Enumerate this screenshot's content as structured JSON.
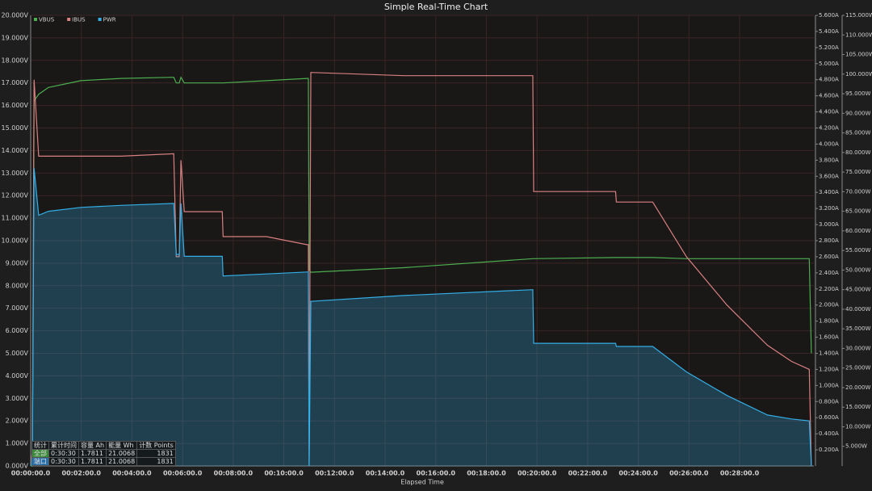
{
  "chart_data": {
    "type": "line",
    "title": "Simple Real-Time Chart",
    "xlabel": "Elapsed Time",
    "grid": true,
    "legend": "top-left",
    "x": [
      0,
      4,
      8,
      19,
      42,
      119,
      214,
      339,
      345,
      352,
      356,
      364,
      454,
      456,
      559,
      655,
      658,
      660,
      664,
      884,
      1190,
      1192,
      1386,
      1388,
      1474,
      1554,
      1650,
      1746,
      1803,
      1845,
      1850
    ],
    "xlim": [
      0,
      1856
    ],
    "xticks": [
      {
        "value": 0,
        "label": "00:00:00.0"
      },
      {
        "value": 120,
        "label": "00:02:00.0"
      },
      {
        "value": 240,
        "label": "00:04:00.0"
      },
      {
        "value": 360,
        "label": "00:06:00.0"
      },
      {
        "value": 480,
        "label": "00:08:00.0"
      },
      {
        "value": 600,
        "label": "00:10:00.0"
      },
      {
        "value": 720,
        "label": "00:12:00.0"
      },
      {
        "value": 840,
        "label": "00:14:00.0"
      },
      {
        "value": 960,
        "label": "00:16:00.0"
      },
      {
        "value": 1080,
        "label": "00:18:00.0"
      },
      {
        "value": 1200,
        "label": "00:20:00.0"
      },
      {
        "value": 1320,
        "label": "00:22:00.0"
      },
      {
        "value": 1440,
        "label": "00:24:00.0"
      },
      {
        "value": 1560,
        "label": "00:26:00.0"
      },
      {
        "value": 1680,
        "label": "00:28:00.0"
      }
    ],
    "ylim": [
      0,
      20
    ],
    "yticks": [
      {
        "value": 0,
        "label": "0.000V"
      },
      {
        "value": 1,
        "label": "1.000V"
      },
      {
        "value": 2,
        "label": "2.000V"
      },
      {
        "value": 3,
        "label": "3.000V"
      },
      {
        "value": 4,
        "label": "4.000V"
      },
      {
        "value": 5,
        "label": "5.000V"
      },
      {
        "value": 6,
        "label": "6.000V"
      },
      {
        "value": 7,
        "label": "7.000V"
      },
      {
        "value": 8,
        "label": "8.000V"
      },
      {
        "value": 9,
        "label": "9.000V"
      },
      {
        "value": 10,
        "label": "10.000V"
      },
      {
        "value": 11,
        "label": "11.000V"
      },
      {
        "value": 12,
        "label": "12.000V"
      },
      {
        "value": 13,
        "label": "13.000V"
      },
      {
        "value": 14,
        "label": "14.000V"
      },
      {
        "value": 15,
        "label": "15.000V"
      },
      {
        "value": 16,
        "label": "16.000V"
      },
      {
        "value": 17,
        "label": "17.000V"
      },
      {
        "value": 18,
        "label": "18.000V"
      },
      {
        "value": 19,
        "label": "19.000V"
      },
      {
        "value": 20,
        "label": "20.000V"
      }
    ],
    "y2lim": [
      0,
      5.6
    ],
    "y2ticks": [
      {
        "value": 0.2,
        "label": "0.200A"
      },
      {
        "value": 0.4,
        "label": "0.400A"
      },
      {
        "value": 0.6,
        "label": "0.600A"
      },
      {
        "value": 0.8,
        "label": "0.800A"
      },
      {
        "value": 1.0,
        "label": "1.000A"
      },
      {
        "value": 1.2,
        "label": "1.200A"
      },
      {
        "value": 1.4,
        "label": "1.400A"
      },
      {
        "value": 1.6,
        "label": "1.600A"
      },
      {
        "value": 1.8,
        "label": "1.800A"
      },
      {
        "value": 2.0,
        "label": "2.000A"
      },
      {
        "value": 2.2,
        "label": "2.200A"
      },
      {
        "value": 2.4,
        "label": "2.400A"
      },
      {
        "value": 2.6,
        "label": "2.600A"
      },
      {
        "value": 2.8,
        "label": "2.800A"
      },
      {
        "value": 3.0,
        "label": "3.000A"
      },
      {
        "value": 3.2,
        "label": "3.200A"
      },
      {
        "value": 3.4,
        "label": "3.400A"
      },
      {
        "value": 3.6,
        "label": "3.600A"
      },
      {
        "value": 3.8,
        "label": "3.800A"
      },
      {
        "value": 4.0,
        "label": "4.000A"
      },
      {
        "value": 4.2,
        "label": "4.200A"
      },
      {
        "value": 4.4,
        "label": "4.400A"
      },
      {
        "value": 4.6,
        "label": "4.600A"
      },
      {
        "value": 4.8,
        "label": "4.800A"
      },
      {
        "value": 5.0,
        "label": "5.000A"
      },
      {
        "value": 5.2,
        "label": "5.200A"
      },
      {
        "value": 5.4,
        "label": "5.400A"
      },
      {
        "value": 5.6,
        "label": "5.600A"
      }
    ],
    "y3lim": [
      0,
      115
    ],
    "y3ticks": [
      {
        "value": 5,
        "label": "5.000W"
      },
      {
        "value": 10,
        "label": "10.000W"
      },
      {
        "value": 15,
        "label": "15.000W"
      },
      {
        "value": 20,
        "label": "20.000W"
      },
      {
        "value": 25,
        "label": "25.000W"
      },
      {
        "value": 30,
        "label": "30.000W"
      },
      {
        "value": 35,
        "label": "35.000W"
      },
      {
        "value": 40,
        "label": "40.000W"
      },
      {
        "value": 45,
        "label": "45.000W"
      },
      {
        "value": 50,
        "label": "50.000W"
      },
      {
        "value": 55,
        "label": "55.000W"
      },
      {
        "value": 60,
        "label": "60.000W"
      },
      {
        "value": 65,
        "label": "65.000W"
      },
      {
        "value": 70,
        "label": "70.000W"
      },
      {
        "value": 75,
        "label": "75.000W"
      },
      {
        "value": 80,
        "label": "80.000W"
      },
      {
        "value": 85,
        "label": "85.000W"
      },
      {
        "value": 90,
        "label": "90.000W"
      },
      {
        "value": 95,
        "label": "95.000W"
      },
      {
        "value": 100,
        "label": "100.000W"
      },
      {
        "value": 105,
        "label": "105.000W"
      },
      {
        "value": 110,
        "label": "110.000W"
      },
      {
        "value": 115,
        "label": "115.000W"
      }
    ],
    "series": [
      {
        "name": "VBUS",
        "color": "#4caf50",
        "axis": "y",
        "values": [
          0,
          0,
          16.2,
          16.5,
          16.8,
          17.1,
          17.2,
          17.25,
          17.0,
          17.0,
          17.25,
          17.0,
          17.0,
          17.0,
          17.1,
          17.2,
          17.2,
          8.7,
          8.6,
          8.8,
          9.2,
          9.2,
          9.25,
          9.25,
          9.25,
          9.2,
          9.2,
          9.2,
          9.2,
          9.2,
          5.0
        ]
      },
      {
        "name": "IBUS",
        "color": "#d98080",
        "axis": "y2",
        "values": [
          0,
          0.2,
          4.8,
          3.85,
          3.85,
          3.85,
          3.85,
          3.88,
          2.6,
          2.6,
          3.8,
          3.16,
          3.16,
          2.85,
          2.85,
          2.75,
          2.75,
          0,
          4.89,
          4.85,
          4.85,
          3.41,
          3.41,
          3.28,
          3.28,
          2.6,
          2.0,
          1.5,
          1.3,
          1.2,
          0
        ]
      },
      {
        "name": "PWR",
        "color": "#33aee6",
        "axis": "y3",
        "area": true,
        "values": [
          0,
          3,
          76,
          64,
          65,
          66,
          66.5,
          67,
          54,
          54,
          67,
          53.5,
          53.5,
          48.5,
          49,
          49.5,
          49.5,
          0,
          42,
          43.5,
          45,
          31.3,
          31.3,
          30.5,
          30.5,
          24,
          18,
          13,
          12,
          11.5,
          0
        ]
      }
    ]
  },
  "stats_table": {
    "header": [
      "统计",
      "累计时间",
      "容量 Ah",
      "能量 Wh",
      "计数 Points"
    ],
    "rows": [
      [
        "全部",
        "0:30:30",
        1.7811,
        21.0068,
        1831
      ],
      [
        "端口",
        "0:30:30",
        1.7811,
        21.0068,
        1831
      ]
    ]
  }
}
